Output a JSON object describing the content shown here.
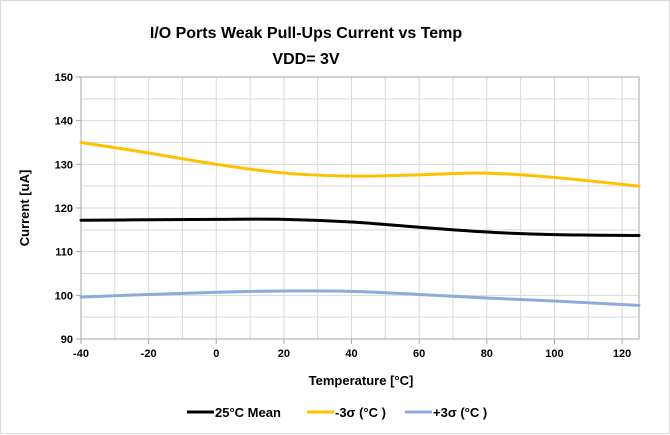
{
  "chart_data": {
    "type": "line",
    "title": "I/O Ports Weak Pull-Ups  Current vs Temp",
    "subtitle": "VDD= 3V",
    "xlabel": "Temperature [°C]",
    "ylabel": "Current [uA]",
    "xlim": [
      -40,
      125
    ],
    "ylim": [
      90,
      150
    ],
    "xticks": [
      -40,
      -20,
      0,
      20,
      40,
      60,
      80,
      100,
      120
    ],
    "yticks": [
      90,
      100,
      110,
      120,
      130,
      140,
      150
    ],
    "grid": true,
    "legend_position": "bottom",
    "x": [
      -40,
      -20,
      0,
      20,
      40,
      60,
      80,
      100,
      125
    ],
    "series": [
      {
        "name": "25°C Mean",
        "color": "#000000",
        "values": [
          117.2,
          117.3,
          117.4,
          117.4,
          116.8,
          115.6,
          114.5,
          113.9,
          113.7
        ]
      },
      {
        "name": "-3σ (°C )",
        "color": "#ffc000",
        "values": [
          135.0,
          132.6,
          130.0,
          128.0,
          127.3,
          127.6,
          128.0,
          127.0,
          125.0
        ]
      },
      {
        "name": "+3σ (°C )",
        "color": "#8eaadb",
        "values": [
          99.6,
          100.2,
          100.7,
          101.0,
          100.9,
          100.2,
          99.4,
          98.7,
          97.7
        ]
      }
    ]
  }
}
